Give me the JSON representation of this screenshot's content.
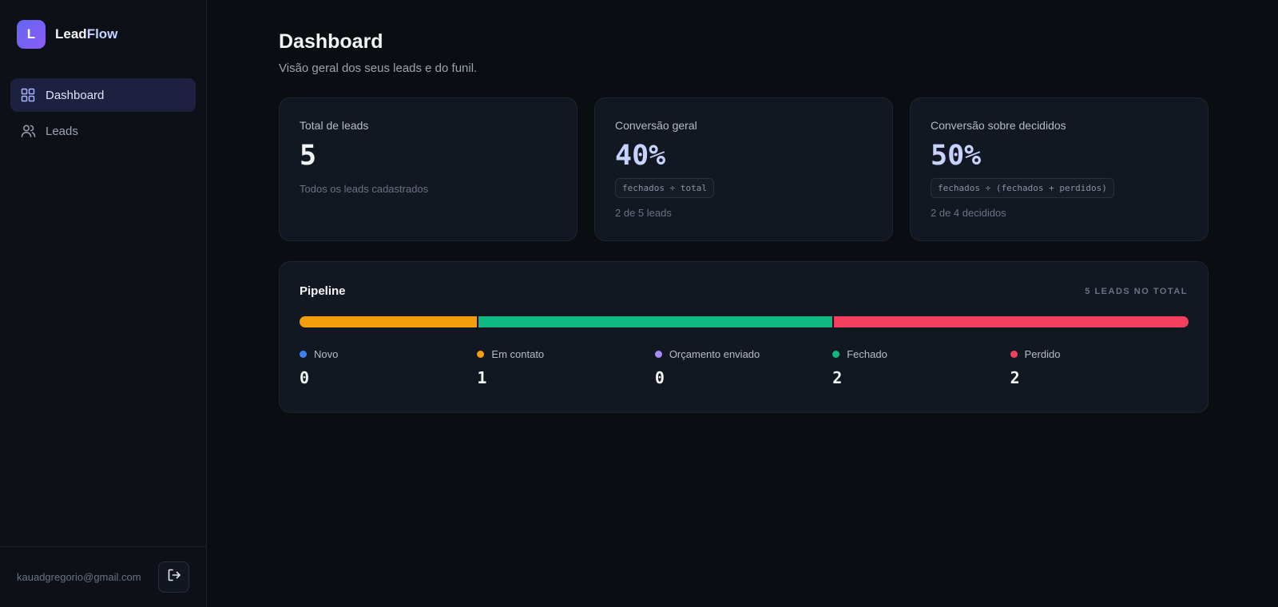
{
  "brand": {
    "logo_letter": "L",
    "name_part1": "Lead",
    "name_part2": "Flow"
  },
  "sidebar": {
    "items": [
      {
        "label": "Dashboard",
        "icon": "grid-icon",
        "active": true
      },
      {
        "label": "Leads",
        "icon": "users-icon",
        "active": false
      }
    ],
    "user_email": "kauadgregorio@gmail.com",
    "logout_icon": "logout-icon"
  },
  "header": {
    "title": "Dashboard",
    "subtitle": "Visão geral dos seus leads e do funil."
  },
  "cards": [
    {
      "label": "Total de leads",
      "value": "5",
      "note": "Todos os leads cadastrados"
    },
    {
      "label": "Conversão geral",
      "value": "40%",
      "formula": "fechados ÷ total",
      "note": "2 de 5 leads"
    },
    {
      "label": "Conversão sobre decididos",
      "value": "50%",
      "formula": "fechados ÷ (fechados + perdidos)",
      "note": "2 de 4 decididos"
    }
  ],
  "pipeline": {
    "title": "Pipeline",
    "total_label": "5 LEADS NO TOTAL",
    "total": 5,
    "stages": [
      {
        "label": "Novo",
        "count": 0,
        "color": "#3b82f6"
      },
      {
        "label": "Em contato",
        "count": 1,
        "color": "#f59e0b"
      },
      {
        "label": "Orçamento enviado",
        "count": 0,
        "color": "#a78bfa"
      },
      {
        "label": "Fechado",
        "count": 2,
        "color": "#10b981"
      },
      {
        "label": "Perdido",
        "count": 2,
        "color": "#f43f5e"
      }
    ]
  },
  "colors": {
    "accent": "#c7d2fe",
    "active_nav_bg": "#1e2040",
    "brand_gradient_start": "#6366f1",
    "brand_gradient_end": "#8b5cf6"
  }
}
